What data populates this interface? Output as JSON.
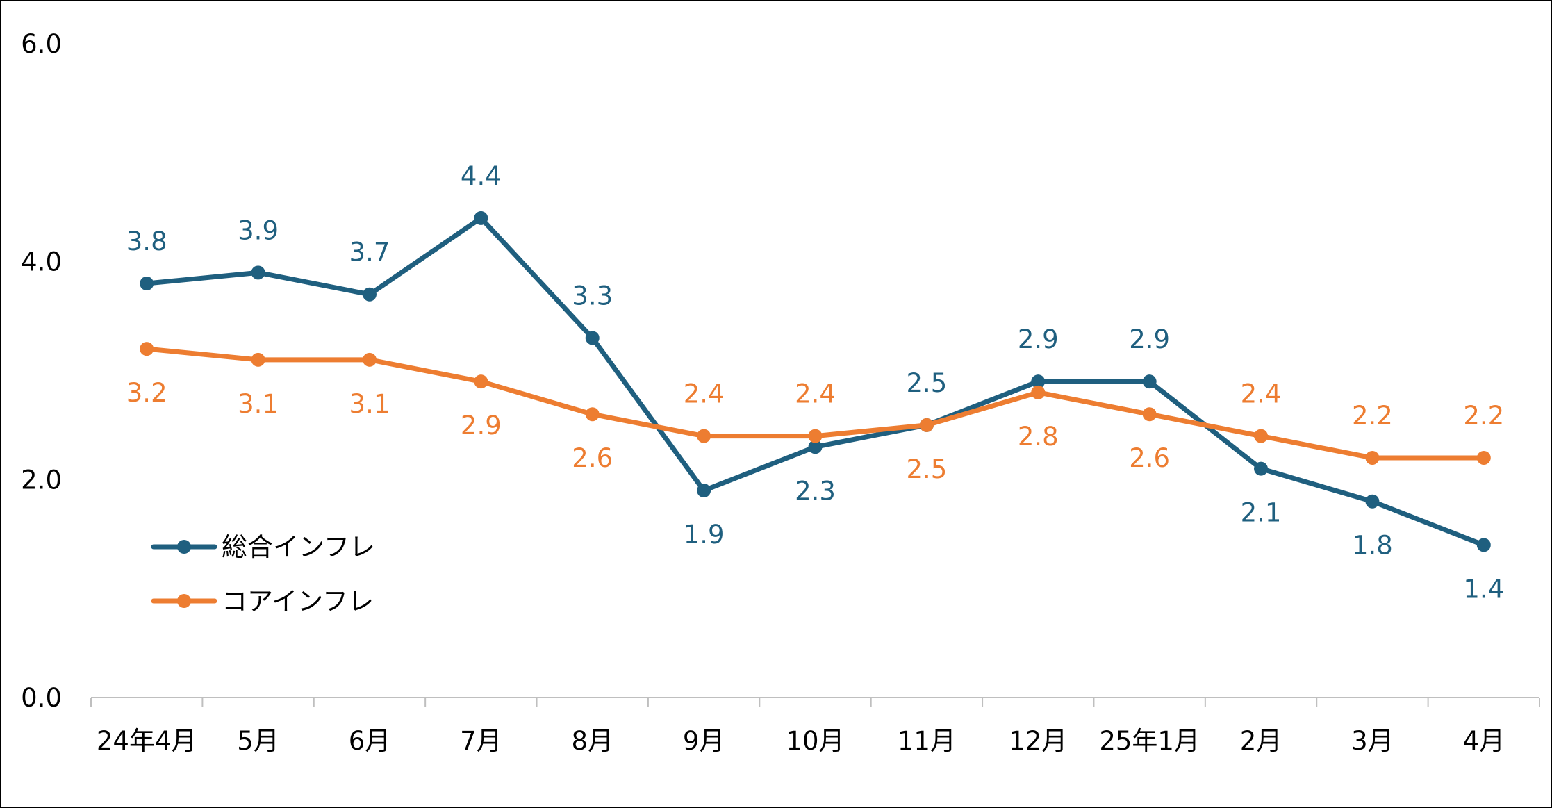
{
  "chart_data": {
    "type": "line",
    "categories": [
      "24年4月",
      "5月",
      "6月",
      "7月",
      "8月",
      "9月",
      "10月",
      "11月",
      "12月",
      "25年1月",
      "2月",
      "3月",
      "4月"
    ],
    "ylim": [
      0,
      6
    ],
    "yticks": [
      "0.0",
      "2.0",
      "4.0",
      "6.0"
    ],
    "ytick_values": [
      0,
      2,
      4,
      6
    ],
    "grid": false,
    "legend_position": "left",
    "series": [
      {
        "name": "総合インフレ",
        "color": "#1F5F7F",
        "values": [
          3.8,
          3.9,
          3.7,
          4.4,
          3.3,
          1.9,
          2.3,
          2.5,
          2.9,
          2.9,
          2.1,
          1.8,
          1.4
        ],
        "labels": [
          "3.8",
          "3.9",
          "3.7",
          "4.4",
          "3.3",
          "1.9",
          "2.3",
          "2.5",
          "2.9",
          "2.9",
          "2.1",
          "1.8",
          "1.4"
        ],
        "label_pos": [
          "above",
          "above",
          "above",
          "above",
          "above",
          "below",
          "below",
          "above",
          "above",
          "above",
          "below",
          "below",
          "below"
        ]
      },
      {
        "name": "コアインフレ",
        "color": "#ED7D31",
        "values": [
          3.2,
          3.1,
          3.1,
          2.9,
          2.6,
          2.4,
          2.4,
          2.5,
          2.8,
          2.6,
          2.4,
          2.2,
          2.2
        ],
        "labels": [
          "3.2",
          "3.1",
          "3.1",
          "2.9",
          "2.6",
          "2.4",
          "2.4",
          "2.5",
          "2.8",
          "2.6",
          "2.4",
          "2.2",
          "2.2"
        ],
        "label_pos": [
          "below",
          "below",
          "below",
          "below",
          "below",
          "above",
          "above",
          "below",
          "below",
          "below",
          "above",
          "above",
          "above"
        ]
      }
    ]
  }
}
